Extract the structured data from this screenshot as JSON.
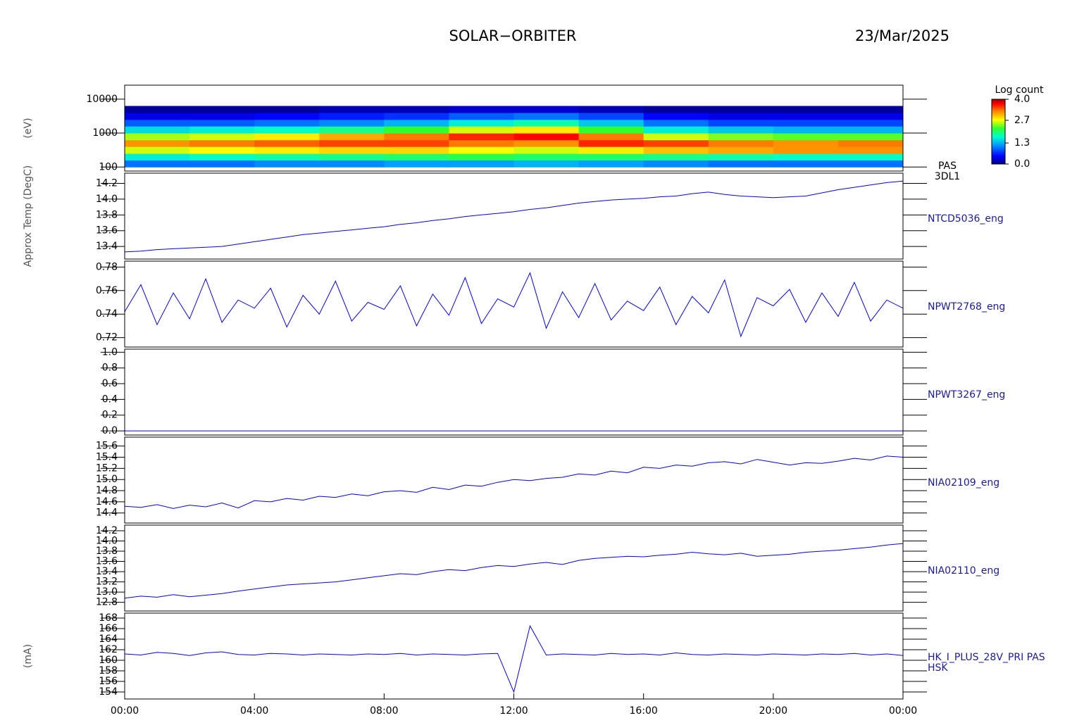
{
  "chart_data": {
    "type": "stacked-panels",
    "title": "SOLAR−ORBITER",
    "date": "23/Mar/2025",
    "xlim": [
      0,
      24
    ],
    "xticks": [
      {
        "value": 0,
        "label": "00:00"
      },
      {
        "value": 4,
        "label": "04:00"
      },
      {
        "value": 8,
        "label": "08:00"
      },
      {
        "value": 12,
        "label": "12:00"
      },
      {
        "value": 16,
        "label": "16:00"
      },
      {
        "value": 20,
        "label": "20:00"
      },
      {
        "value": 24,
        "label": "00:00"
      }
    ],
    "x": [
      0,
      0.5,
      1,
      1.5,
      2,
      2.5,
      3,
      3.5,
      4,
      4.5,
      5,
      5.5,
      6,
      6.5,
      7,
      7.5,
      8,
      8.5,
      9,
      9.5,
      10,
      10.5,
      11,
      11.5,
      12,
      12.5,
      13,
      13.5,
      14,
      14.5,
      15,
      15.5,
      16,
      16.5,
      17,
      17.5,
      18,
      18.5,
      19,
      19.5,
      20,
      20.5,
      21,
      21.5,
      22,
      22.5,
      23,
      23.5,
      24
    ],
    "panels": [
      {
        "type": "spectrogram",
        "ylabel": "(eV)",
        "right_label": [
          "PAS",
          "3DL1"
        ],
        "log": true,
        "ylim": [
          76,
          25800
        ],
        "yticks": [
          100,
          1000,
          10000
        ],
        "x_bins": [
          0,
          2,
          4,
          6,
          8,
          10,
          12,
          14,
          16,
          18,
          20,
          22,
          24
        ],
        "energy_bins": [
          100,
          160,
          250,
          400,
          630,
          1000,
          1600,
          2500,
          4000,
          6300
        ],
        "z": [
          [
            1.0,
            1.0,
            1.1,
            1.1,
            1.2,
            1.2,
            1.3,
            1.2,
            1.1,
            1.0,
            1.0,
            1.0
          ],
          [
            1.6,
            1.7,
            1.8,
            1.9,
            2.0,
            2.1,
            2.0,
            2.0,
            1.9,
            1.8,
            1.7,
            1.7
          ],
          [
            2.6,
            2.7,
            2.8,
            2.9,
            2.9,
            2.7,
            2.6,
            2.8,
            3.0,
            3.1,
            3.2,
            3.2
          ],
          [
            3.2,
            3.3,
            3.4,
            3.5,
            3.5,
            3.3,
            3.2,
            3.6,
            3.5,
            3.3,
            3.2,
            3.3
          ],
          [
            2.5,
            2.6,
            2.8,
            3.1,
            3.3,
            3.6,
            3.7,
            3.3,
            2.6,
            2.4,
            2.3,
            2.3
          ],
          [
            1.5,
            1.6,
            1.7,
            1.9,
            2.2,
            2.6,
            2.8,
            2.2,
            1.6,
            1.4,
            1.3,
            1.3
          ],
          [
            0.9,
            0.9,
            1.0,
            1.1,
            1.3,
            1.6,
            1.8,
            1.4,
            1.0,
            0.8,
            0.8,
            0.8
          ],
          [
            0.4,
            0.4,
            0.5,
            0.6,
            0.7,
            0.9,
            1.0,
            0.8,
            0.5,
            0.4,
            0.4,
            0.4
          ],
          [
            0.1,
            0.1,
            0.1,
            0.2,
            0.2,
            0.3,
            0.3,
            0.2,
            0.1,
            0.1,
            0.1,
            0.1
          ]
        ],
        "colorbar": {
          "label": "Log count",
          "clim": [
            0,
            4
          ],
          "ticks": [
            {
              "value": 0,
              "label": "0.0"
            },
            1.3,
            2.7,
            {
              "value": 4,
              "label": "4.0"
            }
          ]
        }
      },
      {
        "type": "line",
        "ylabel": "Approx Temp (DegC)",
        "right_label": [
          "NTCD5036_eng"
        ],
        "color": "#0000ff",
        "ylim": [
          13.24,
          14.33
        ],
        "yticks": [
          13.4,
          13.6,
          13.8,
          {
            "value": 14,
            "label": "14.0"
          },
          14.2
        ],
        "values": [
          13.33,
          13.34,
          13.36,
          13.37,
          13.38,
          13.39,
          13.4,
          13.43,
          13.46,
          13.49,
          13.52,
          13.55,
          13.57,
          13.59,
          13.61,
          13.63,
          13.65,
          13.68,
          13.7,
          13.73,
          13.75,
          13.78,
          13.8,
          13.82,
          13.84,
          13.87,
          13.89,
          13.92,
          13.95,
          13.97,
          13.99,
          14.0,
          14.01,
          14.03,
          14.04,
          14.07,
          14.09,
          14.06,
          14.04,
          14.03,
          14.02,
          14.03,
          14.04,
          14.08,
          14.12,
          14.15,
          14.18,
          14.21,
          14.23
        ]
      },
      {
        "type": "line",
        "right_label": [
          "NPWT2768_eng"
        ],
        "color": "#0000ff",
        "ylim": [
          0.712,
          0.785
        ],
        "yticks": [
          0.72,
          0.74,
          0.76,
          0.78
        ],
        "values": [
          0.742,
          0.765,
          0.731,
          0.758,
          0.736,
          0.77,
          0.733,
          0.752,
          0.745,
          0.762,
          0.729,
          0.756,
          0.74,
          0.768,
          0.734,
          0.75,
          0.744,
          0.764,
          0.73,
          0.757,
          0.739,
          0.771,
          0.732,
          0.753,
          0.746,
          0.775,
          0.728,
          0.759,
          0.737,
          0.766,
          0.735,
          0.751,
          0.743,
          0.763,
          0.731,
          0.755,
          0.741,
          0.769,
          0.721,
          0.754,
          0.747,
          0.761,
          0.733,
          0.758,
          0.738,
          0.767,
          0.734,
          0.752,
          0.745
        ]
      },
      {
        "type": "line",
        "right_label": [
          "NPWT3267_eng"
        ],
        "color": "#0000ff",
        "ylim": [
          -0.053,
          1.039
        ],
        "yticks": [
          {
            "value": 0,
            "label": "0.0"
          },
          0.2,
          0.4,
          0.6,
          0.8,
          {
            "value": 1,
            "label": "1.0"
          }
        ],
        "values": [
          0,
          0,
          0,
          0,
          0,
          0,
          0,
          0,
          0,
          0,
          0,
          0,
          0,
          0,
          0,
          0,
          0,
          0,
          0,
          0,
          0,
          0,
          0,
          0,
          0,
          0,
          0,
          0,
          0,
          0,
          0,
          0,
          0,
          0,
          0,
          0,
          0,
          0,
          0,
          0,
          0,
          0,
          0,
          0,
          0,
          0,
          0,
          0,
          0
        ]
      },
      {
        "type": "line",
        "right_label": [
          "NIA02109_eng"
        ],
        "color": "#0000ff",
        "ylim": [
          14.22,
          15.76
        ],
        "yticks": [
          14.4,
          14.6,
          14.8,
          {
            "value": 15,
            "label": "15.0"
          },
          15.2,
          15.4,
          15.6
        ],
        "values": [
          14.52,
          14.5,
          14.55,
          14.48,
          14.54,
          14.51,
          14.58,
          14.49,
          14.62,
          14.6,
          14.66,
          14.63,
          14.7,
          14.68,
          14.74,
          14.71,
          14.78,
          14.8,
          14.77,
          14.86,
          14.82,
          14.9,
          14.88,
          14.95,
          15.0,
          14.98,
          15.02,
          15.04,
          15.1,
          15.08,
          15.15,
          15.12,
          15.22,
          15.2,
          15.26,
          15.24,
          15.3,
          15.32,
          15.28,
          15.36,
          15.31,
          15.26,
          15.3,
          15.29,
          15.33,
          15.38,
          15.35,
          15.42,
          15.4
        ]
      },
      {
        "type": "line",
        "right_label": [
          "NIA02110_eng"
        ],
        "color": "#0000ff",
        "ylim": [
          12.63,
          14.31
        ],
        "yticks": [
          12.8,
          {
            "value": 13,
            "label": "13.0"
          },
          13.2,
          13.4,
          13.6,
          13.8,
          {
            "value": 14,
            "label": "14.0"
          },
          14.2
        ],
        "values": [
          12.88,
          12.92,
          12.9,
          12.95,
          12.91,
          12.94,
          12.97,
          13.02,
          13.06,
          13.1,
          13.14,
          13.16,
          13.18,
          13.2,
          13.24,
          13.28,
          13.32,
          13.36,
          13.34,
          13.4,
          13.44,
          13.42,
          13.48,
          13.52,
          13.5,
          13.55,
          13.58,
          13.54,
          13.62,
          13.66,
          13.68,
          13.7,
          13.69,
          13.72,
          13.74,
          13.78,
          13.75,
          13.73,
          13.76,
          13.7,
          13.72,
          13.74,
          13.78,
          13.8,
          13.82,
          13.85,
          13.88,
          13.92,
          13.95
        ]
      },
      {
        "type": "line",
        "ylabel": "(mA)",
        "right_label": [
          "HK_I_PLUS_28V_PRI PAS",
          "HSK"
        ],
        "color": "#0000ff",
        "ylim": [
          152.67,
          168.93
        ],
        "yticks": [
          154,
          156,
          158,
          160,
          162,
          164,
          166,
          168
        ],
        "values": [
          161.2,
          161.0,
          161.5,
          161.3,
          160.9,
          161.4,
          161.6,
          161.1,
          161.0,
          161.3,
          161.2,
          161.0,
          161.2,
          161.1,
          161.0,
          161.2,
          161.1,
          161.3,
          161.0,
          161.2,
          161.1,
          161.0,
          161.2,
          161.3,
          154.0,
          166.5,
          161.0,
          161.2,
          161.1,
          161.0,
          161.3,
          161.1,
          161.2,
          161.0,
          161.4,
          161.1,
          161.0,
          161.2,
          161.1,
          161.0,
          161.2,
          161.1,
          161.0,
          161.2,
          161.1,
          161.3,
          161.0,
          161.2,
          160.9
        ]
      }
    ]
  }
}
